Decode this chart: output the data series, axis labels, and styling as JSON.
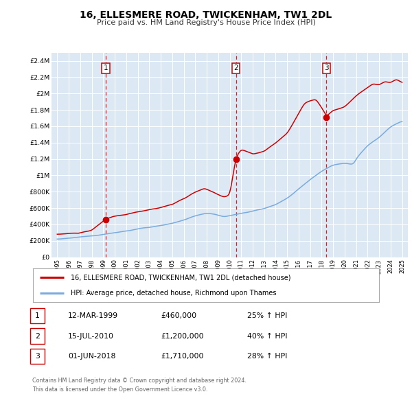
{
  "title": "16, ELLESMERE ROAD, TWICKENHAM, TW1 2DL",
  "subtitle": "Price paid vs. HM Land Registry's House Price Index (HPI)",
  "legend_line1": "16, ELLESMERE ROAD, TWICKENHAM, TW1 2DL (detached house)",
  "legend_line2": "HPI: Average price, detached house, Richmond upon Thames",
  "footer1": "Contains HM Land Registry data © Crown copyright and database right 2024.",
  "footer2": "This data is licensed under the Open Government Licence v3.0.",
  "red_color": "#cc0000",
  "blue_color": "#7aabdc",
  "plot_bg_color": "#dce9f5",
  "transactions": [
    {
      "label": "1",
      "date": 1999.21,
      "price": 460000,
      "date_str": "12-MAR-1999",
      "price_str": "£460,000",
      "pct_str": "25% ↑ HPI"
    },
    {
      "label": "2",
      "date": 2010.54,
      "price": 1200000,
      "date_str": "15-JUL-2010",
      "price_str": "£1,200,000",
      "pct_str": "40% ↑ HPI"
    },
    {
      "label": "3",
      "date": 2018.42,
      "price": 1710000,
      "date_str": "01-JUN-2018",
      "price_str": "£1,710,000",
      "pct_str": "28% ↑ HPI"
    }
  ],
  "yticks": [
    0,
    200000,
    400000,
    600000,
    800000,
    1000000,
    1200000,
    1400000,
    1600000,
    1800000,
    2000000,
    2200000,
    2400000
  ],
  "ytick_labels": [
    "£0",
    "£200K",
    "£400K",
    "£600K",
    "£800K",
    "£1M",
    "£1.2M",
    "£1.4M",
    "£1.6M",
    "£1.8M",
    "£2M",
    "£2.2M",
    "£2.4M"
  ],
  "xlim": [
    1994.5,
    2025.5
  ],
  "ylim": [
    0,
    2500000
  ],
  "xticks": [
    1995,
    1996,
    1997,
    1998,
    1999,
    2000,
    2001,
    2002,
    2003,
    2004,
    2005,
    2006,
    2007,
    2008,
    2009,
    2010,
    2011,
    2012,
    2013,
    2014,
    2015,
    2016,
    2017,
    2018,
    2019,
    2020,
    2021,
    2022,
    2023,
    2024,
    2025
  ]
}
